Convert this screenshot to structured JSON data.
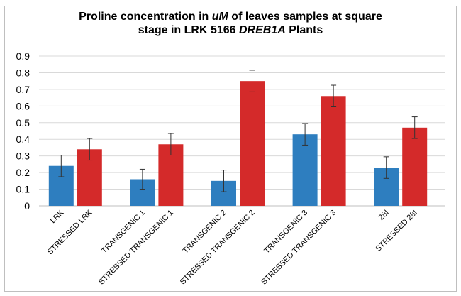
{
  "chart_data": {
    "type": "bar",
    "title_parts": {
      "line1_a": "Proline concentration in ",
      "line1_em": "uM",
      "line1_b": " of leaves samples at square",
      "line2_a": "stage in LRK 5166 ",
      "line2_em": "DREB1A",
      "line2_b": " Plants"
    },
    "categories": [
      "LRK",
      "STRESSED LRK",
      "TRANSGENIC 1",
      "STRESSED TRANSGENIC 1",
      "TRANSGENIC 2",
      "STRESSED TRANSGENIC 2",
      "TRANSGENIC 3",
      "STRESSED TRANSGENIC 3",
      "28I",
      "STRESSED 28I"
    ],
    "values": [
      0.24,
      0.34,
      0.16,
      0.37,
      0.15,
      0.75,
      0.43,
      0.66,
      0.23,
      0.47
    ],
    "errors": [
      0.065,
      0.065,
      0.06,
      0.065,
      0.065,
      0.065,
      0.065,
      0.065,
      0.065,
      0.065
    ],
    "groups": 5,
    "colors": [
      "#2e7ebf",
      "#d42a2a"
    ],
    "yticks": [
      "0",
      "0.1",
      "0.2",
      "0.3",
      "0.4",
      "0.5",
      "0.6",
      "0.7",
      "0.8",
      "0.9"
    ],
    "ylim": [
      0,
      0.9
    ],
    "grid": true,
    "xlabel": "",
    "ylabel": ""
  }
}
